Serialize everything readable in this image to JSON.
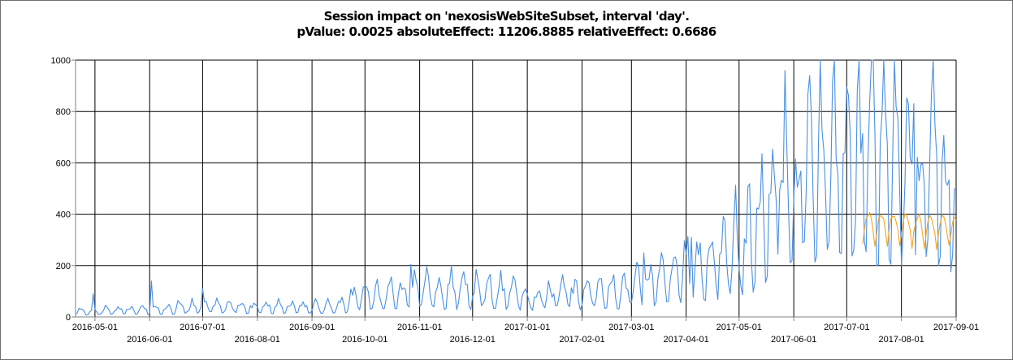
{
  "chart_data": {
    "type": "line",
    "title": "Session impact on 'nexosisWebSiteSubset, interval 'day'.",
    "subtitle": "pValue: 0.0025 absoluteEffect: 11206.8885 relativeEffect: 0.6686",
    "xlabel": "",
    "ylabel": "",
    "xlim": [
      "2016-04-20",
      "2017-09-01"
    ],
    "ylim": [
      0,
      1000
    ],
    "y_ticks": [
      0,
      200,
      400,
      600,
      800,
      1000
    ],
    "y_tick_labels": [
      "0",
      "200",
      "400",
      "600",
      "800",
      "1000"
    ],
    "x_ticks": [
      "2016-05-01",
      "2016-06-01",
      "2016-07-01",
      "2016-08-01",
      "2016-09-01",
      "2016-10-01",
      "2016-11-01",
      "2016-12-01",
      "2017-01-01",
      "2017-02-01",
      "2017-03-01",
      "2017-04-01",
      "2017-05-01",
      "2017-06-01",
      "2017-07-01",
      "2017-08-01",
      "2017-09-01"
    ],
    "grid": true,
    "colors": {
      "actual": "#4a90e2",
      "predicted": "#f5a623",
      "grid": "#000000",
      "axis": "#808080"
    },
    "series": [
      {
        "key": "actual",
        "x_start": "2016-04-20",
        "x_end": "2017-09-01",
        "knots": [
          [
            0,
            20
          ],
          [
            30,
            25
          ],
          [
            60,
            35
          ],
          [
            90,
            38
          ],
          [
            120,
            35
          ],
          [
            150,
            40
          ],
          [
            165,
            85
          ],
          [
            200,
            95
          ],
          [
            230,
            90
          ],
          [
            260,
            80
          ],
          [
            285,
            85
          ],
          [
            310,
            105
          ],
          [
            335,
            145
          ],
          [
            360,
            200
          ],
          [
            380,
            260
          ],
          [
            395,
            420
          ],
          [
            420,
            520
          ],
          [
            440,
            560
          ],
          [
            470,
            560
          ],
          [
            499,
            500
          ]
        ],
        "events": [
          [
            10,
            90
          ],
          [
            43,
            140
          ],
          [
            72,
            110
          ],
          [
            190,
            205
          ],
          [
            213,
            200
          ],
          [
            322,
            250
          ],
          [
            349,
            310
          ],
          [
            375,
            310
          ],
          [
            387,
            420
          ],
          [
            399,
            495
          ],
          [
            459,
            800
          ],
          [
            475,
            830
          ]
        ]
      },
      {
        "key": "predicted",
        "x_start": "2017-07-10",
        "x_end": "2017-09-01",
        "knots": [
          [
            0,
            340
          ],
          [
            20,
            340
          ],
          [
            40,
            330
          ],
          [
            53,
            330
          ]
        ]
      }
    ]
  }
}
